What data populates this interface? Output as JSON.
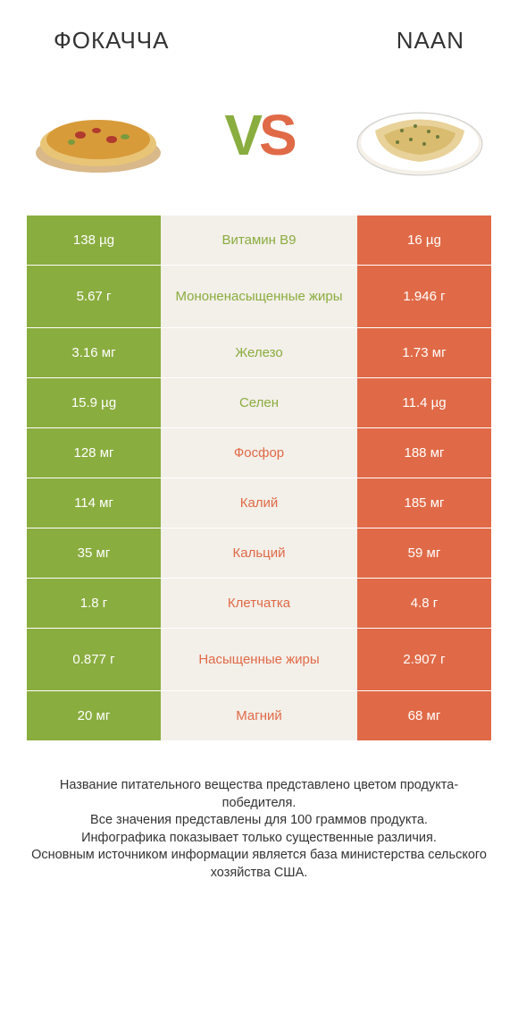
{
  "header": {
    "left_title": "ФОКАЧЧА",
    "right_title": "NAAN"
  },
  "vs": {
    "v": "V",
    "s": "S"
  },
  "colors": {
    "green": "#8aad3f",
    "orange": "#e06a47",
    "mid_bg": "#f3efe9",
    "page_bg": "#ffffff",
    "text": "#333333"
  },
  "rows": [
    {
      "left": "138 µg",
      "label": "Витамин B9",
      "right": "16 µg",
      "winner": "left",
      "tall": false
    },
    {
      "left": "5.67 г",
      "label": "Мононенасыщенные жиры",
      "right": "1.946 г",
      "winner": "left",
      "tall": true
    },
    {
      "left": "3.16 мг",
      "label": "Железо",
      "right": "1.73 мг",
      "winner": "left",
      "tall": false
    },
    {
      "left": "15.9 µg",
      "label": "Селен",
      "right": "11.4 µg",
      "winner": "left",
      "tall": false
    },
    {
      "left": "128 мг",
      "label": "Фосфор",
      "right": "188 мг",
      "winner": "right",
      "tall": false
    },
    {
      "left": "114 мг",
      "label": "Калий",
      "right": "185 мг",
      "winner": "right",
      "tall": false
    },
    {
      "left": "35 мг",
      "label": "Кальций",
      "right": "59 мг",
      "winner": "right",
      "tall": false
    },
    {
      "left": "1.8 г",
      "label": "Клетчатка",
      "right": "4.8 г",
      "winner": "right",
      "tall": false
    },
    {
      "left": "0.877 г",
      "label": "Насыщенные жиры",
      "right": "2.907 г",
      "winner": "right",
      "tall": true
    },
    {
      "left": "20 мг",
      "label": "Магний",
      "right": "68 мг",
      "winner": "right",
      "tall": false
    }
  ],
  "footer": {
    "line1": "Название питательного вещества представлено цветом продукта-победителя.",
    "line2": "Все значения представлены для 100 граммов продукта.",
    "line3": "Инфографика показывает только существенные различия.",
    "line4": "Основным источником информации является база министерства сельского хозяйства США."
  }
}
